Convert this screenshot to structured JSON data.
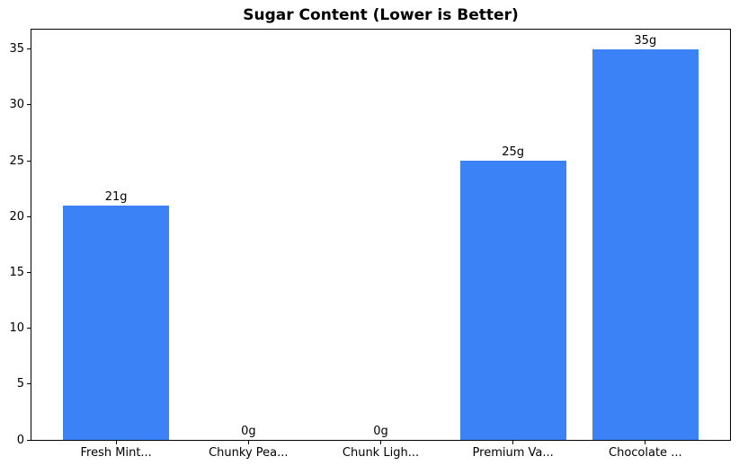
{
  "chart_data": {
    "type": "bar",
    "title": "Sugar Content (Lower is Better)",
    "categories": [
      "Fresh Mint...",
      "Chunky Pea...",
      "Chunk Ligh...",
      "Premium Va...",
      "Chocolate ..."
    ],
    "values": [
      21,
      0,
      0,
      25,
      35
    ],
    "value_labels": [
      "21g",
      "0g",
      "0g",
      "25g",
      "35g"
    ],
    "yticks": [
      0,
      5,
      10,
      15,
      20,
      25,
      30,
      35
    ],
    "ylim": [
      0,
      36.75
    ],
    "xlim": [
      -0.64,
      4.64
    ],
    "bar_width_units": 0.8,
    "bar_color": "#3b82f6",
    "axis_color": "#000000",
    "text_color": "#000000",
    "background_color": "#ffffff",
    "grid": false,
    "legend_position": "none",
    "xlabel": "",
    "ylabel": ""
  }
}
